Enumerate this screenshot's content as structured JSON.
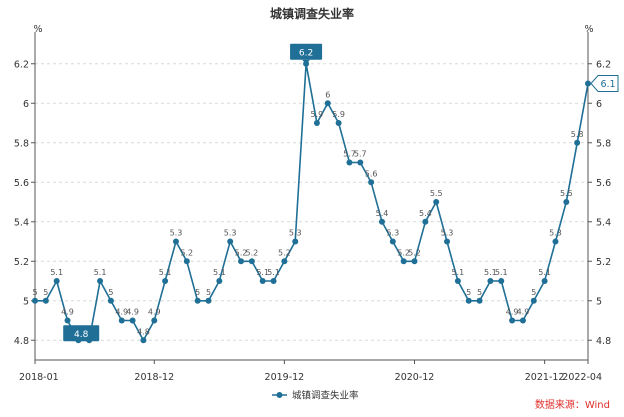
{
  "chart_data": {
    "type": "line",
    "title": "城镇调查失业率",
    "y_unit_left": "%",
    "y_unit_right": "%",
    "ylim": [
      4.7,
      6.3
    ],
    "yticks": [
      4.8,
      5,
      5.2,
      5.4,
      5.6,
      5.8,
      6,
      6.2
    ],
    "x_tick_labels": [
      "2018-01",
      "2018-12",
      "2019-12",
      "2020-12",
      "2021-12",
      "2022-04"
    ],
    "grid": true,
    "legend_position": "bottom-center",
    "color": "#1f6f96",
    "series": [
      {
        "name": "城镇调查失业率",
        "x": [
          "2018-01",
          "2018-02",
          "2018-03",
          "2018-04",
          "2018-05",
          "2018-06",
          "2018-07",
          "2018-08",
          "2018-09",
          "2018-10",
          "2018-11",
          "2018-12",
          "2019-01",
          "2019-02",
          "2019-03",
          "2019-04",
          "2019-05",
          "2019-06",
          "2019-07",
          "2019-08",
          "2019-09",
          "2019-10",
          "2019-11",
          "2019-12",
          "2020-01",
          "2020-02",
          "2020-03",
          "2020-04",
          "2020-05",
          "2020-06",
          "2020-07",
          "2020-08",
          "2020-09",
          "2020-10",
          "2020-11",
          "2020-12",
          "2021-01",
          "2021-02",
          "2021-03",
          "2021-04",
          "2021-05",
          "2021-06",
          "2021-07",
          "2021-08",
          "2021-09",
          "2021-10",
          "2021-11",
          "2021-12",
          "2022-01",
          "2022-02",
          "2022-03",
          "2022-04"
        ],
        "values": [
          5.0,
          5.0,
          5.1,
          4.9,
          4.8,
          4.8,
          5.1,
          5.0,
          4.9,
          4.9,
          4.8,
          4.9,
          5.1,
          5.3,
          5.2,
          5.0,
          5.0,
          5.1,
          5.3,
          5.2,
          5.2,
          5.1,
          5.1,
          5.2,
          5.3,
          6.2,
          5.9,
          6.0,
          5.9,
          5.7,
          5.7,
          5.6,
          5.4,
          5.3,
          5.2,
          5.2,
          5.4,
          5.5,
          5.3,
          5.1,
          5.0,
          5.0,
          5.1,
          5.1,
          4.9,
          4.9,
          5.0,
          5.1,
          5.3,
          5.5,
          5.8,
          6.1
        ]
      }
    ],
    "annotations": [
      {
        "label": "6.2",
        "x": "2020-02",
        "style": "max-box"
      },
      {
        "label": "4.8",
        "x": "2018-06",
        "style": "min-box"
      },
      {
        "label": "6.1",
        "x": "2022-04",
        "style": "last-value"
      }
    ]
  },
  "source_text": "数据来源：Wind"
}
